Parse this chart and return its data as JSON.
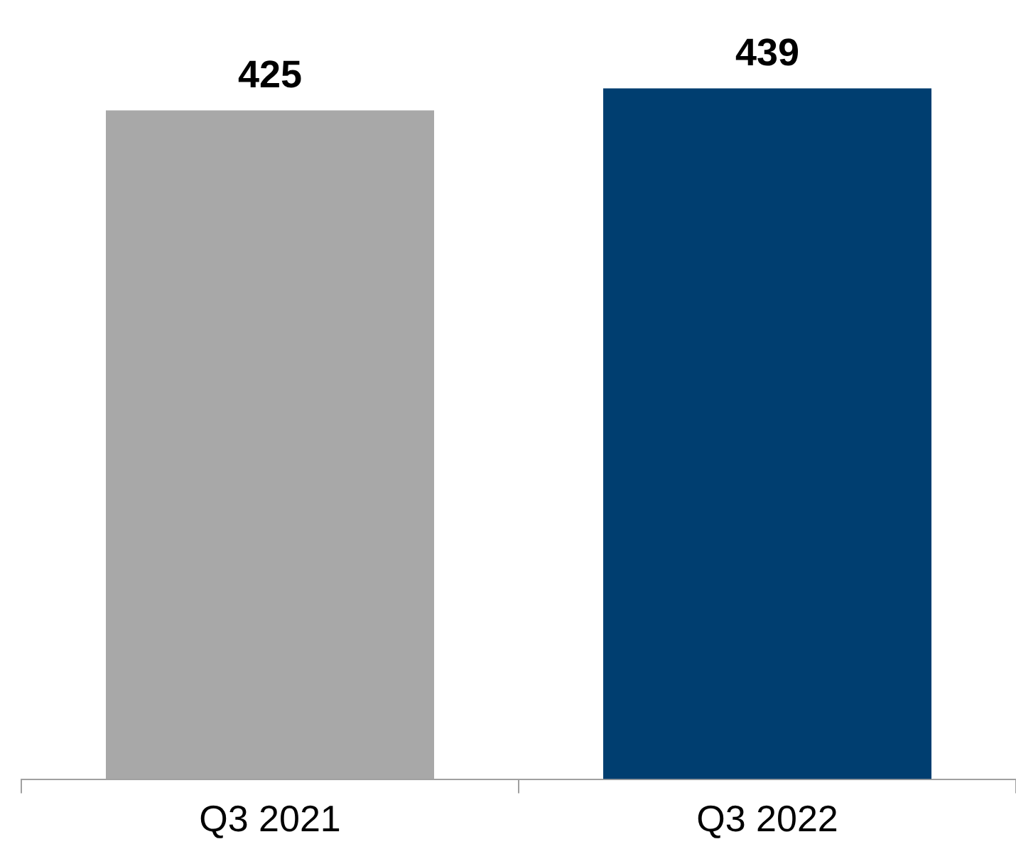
{
  "chart_data": {
    "type": "bar",
    "categories": [
      "Q3 2021",
      "Q3 2022"
    ],
    "values": [
      425,
      439
    ],
    "colors": [
      "#a8a8a8",
      "#003e70"
    ],
    "data_labels": true,
    "grid": false,
    "legend": false
  }
}
